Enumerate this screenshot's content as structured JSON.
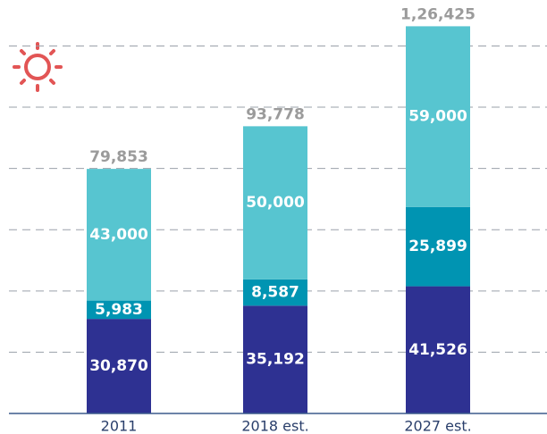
{
  "chart_data": {
    "type": "stacked_bar",
    "categories": [
      "2011",
      "2018 est.",
      "2027 est."
    ],
    "series": [
      {
        "color": "#2e3192",
        "values": [
          30870,
          35192,
          41526
        ],
        "value_labels": [
          "30,870",
          "35,192",
          "41,526"
        ]
      },
      {
        "color": "#0094b2",
        "values": [
          5983,
          8587,
          25899
        ],
        "value_labels": [
          "5,983",
          "8,587",
          "25,899"
        ]
      },
      {
        "color": "#57c5d0",
        "values": [
          43000,
          50000,
          59000
        ],
        "value_labels": [
          "43,000",
          "50,000",
          "59,000"
        ]
      }
    ],
    "totals": [
      79853,
      93778,
      126425
    ],
    "total_labels": [
      "79,853",
      "93,778",
      "1,26,425"
    ],
    "ylim": [
      0,
      135000
    ],
    "yticks": [
      20000,
      40000,
      60000,
      80000,
      100000,
      120000
    ],
    "grid": true
  }
}
